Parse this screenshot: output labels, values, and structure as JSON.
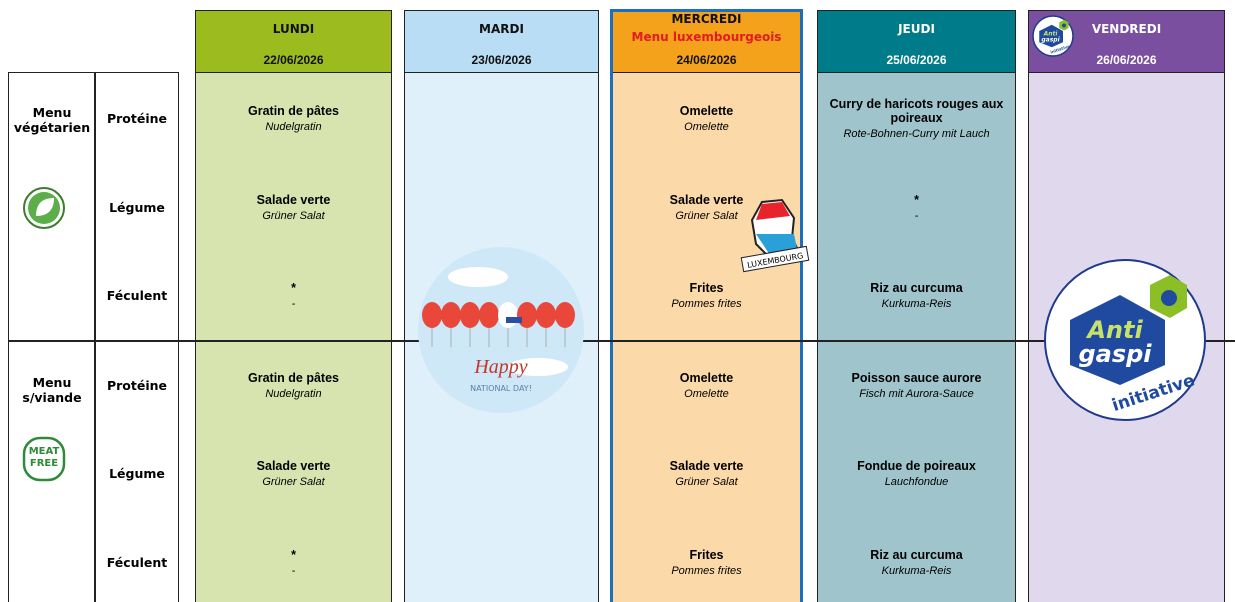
{
  "sections": [
    {
      "label": "Menu végétarien"
    },
    {
      "label": "Menu s/viande",
      "icon_text": [
        "MEAT",
        "FREE"
      ]
    }
  ],
  "categories": [
    "Protéine",
    "Légume",
    "Féculent"
  ],
  "days": [
    {
      "name": "LUNDI",
      "date": "22/06/2026",
      "menus": [
        [
          {
            "title": "Gratin de pâtes",
            "subtitle": "Nudelgratin"
          },
          {
            "title": "Salade verte",
            "subtitle": "Grüner Salat"
          },
          {
            "title": "*",
            "subtitle": "-"
          }
        ],
        [
          {
            "title": "Gratin de pâtes",
            "subtitle": "Nudelgratin"
          },
          {
            "title": "Salade verte",
            "subtitle": "Grüner Salat"
          },
          {
            "title": "*",
            "subtitle": "-"
          }
        ]
      ]
    },
    {
      "name": "MARDI",
      "date": "23/06/2026",
      "image_text": [
        "Happy",
        "NATIONAL DAY!"
      ]
    },
    {
      "name": "MERCREDI",
      "note": "Menu luxembourgeois",
      "date": "24/06/2026",
      "badge": "LUXEMBOURG",
      "menus": [
        [
          {
            "title": "Omelette",
            "subtitle": "Omelette"
          },
          {
            "title": "Salade verte",
            "subtitle": "Grüner Salat"
          },
          {
            "title": "Frites",
            "subtitle": "Pommes frites"
          }
        ],
        [
          {
            "title": "Omelette",
            "subtitle": "Omelette"
          },
          {
            "title": "Salade verte",
            "subtitle": "Grüner Salat"
          },
          {
            "title": "Frites",
            "subtitle": "Pommes frites"
          }
        ]
      ]
    },
    {
      "name": "JEUDI",
      "date": "25/06/2026",
      "menus": [
        [
          {
            "title": "Curry de haricots rouges aux poireaux",
            "subtitle": "Rote-Bohnen-Curry mit Lauch"
          },
          {
            "title": "*",
            "subtitle": "-"
          },
          {
            "title": "Riz au curcuma",
            "subtitle": "Kurkuma-Reis"
          }
        ],
        [
          {
            "title": "Poisson sauce aurore",
            "subtitle": "Fisch mit Aurora-Sauce"
          },
          {
            "title": "Fondue de poireaux",
            "subtitle": "Lauchfondue"
          },
          {
            "title": "Riz au curcuma",
            "subtitle": "Kurkuma-Reis"
          }
        ]
      ]
    },
    {
      "name": "VENDREDI",
      "date": "26/06/2026",
      "logo": [
        "Anti",
        "gaspi",
        "initiative"
      ]
    }
  ]
}
